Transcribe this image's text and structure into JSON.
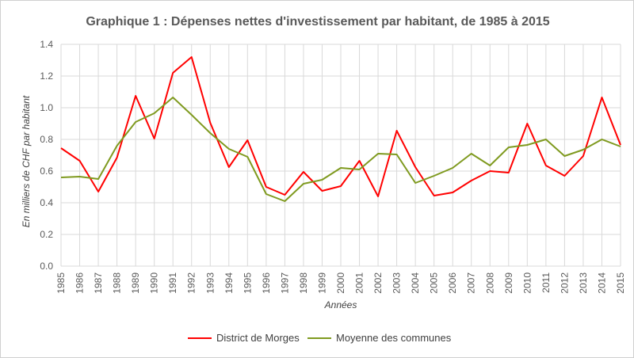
{
  "chart_data": {
    "type": "line",
    "title": "Graphique 1 : Dépenses nettes d'investissement par habitant, de 1985 à 2015",
    "xlabel": "Années",
    "ylabel": "En milliers de CHF par habitant",
    "ylim": [
      0,
      1.4
    ],
    "yticks": [
      "0.0",
      "0.2",
      "0.4",
      "0.6",
      "0.8",
      "1.0",
      "1.2",
      "1.4"
    ],
    "grid": true,
    "legend_position": "bottom",
    "x": [
      "1985",
      "1986",
      "1987",
      "1988",
      "1989",
      "1990",
      "1991",
      "1992",
      "1993",
      "1994",
      "1995",
      "1996",
      "1997",
      "1998",
      "1999",
      "2000",
      "2001",
      "2002",
      "2003",
      "2004",
      "2005",
      "2006",
      "2007",
      "2008",
      "2009",
      "2010",
      "2011",
      "2012",
      "2013",
      "2014",
      "2015"
    ],
    "series": [
      {
        "name": "District de Morges",
        "color": "#ff0000",
        "values": [
          0.745,
          0.665,
          0.47,
          0.685,
          1.075,
          0.805,
          1.22,
          1.32,
          0.905,
          0.625,
          0.795,
          0.5,
          0.45,
          0.595,
          0.475,
          0.505,
          0.665,
          0.44,
          0.855,
          0.625,
          0.445,
          0.465,
          0.54,
          0.6,
          0.59,
          0.9,
          0.635,
          0.57,
          0.695,
          1.065,
          0.765
        ]
      },
      {
        "name": "Moyenne des communes",
        "color": "#7f9a1f",
        "values": [
          0.56,
          0.565,
          0.55,
          0.76,
          0.91,
          0.965,
          1.065,
          0.955,
          0.84,
          0.74,
          0.69,
          0.455,
          0.41,
          0.52,
          0.545,
          0.62,
          0.61,
          0.71,
          0.705,
          0.525,
          0.57,
          0.62,
          0.71,
          0.635,
          0.75,
          0.765,
          0.8,
          0.695,
          0.735,
          0.8,
          0.755
        ]
      }
    ]
  }
}
